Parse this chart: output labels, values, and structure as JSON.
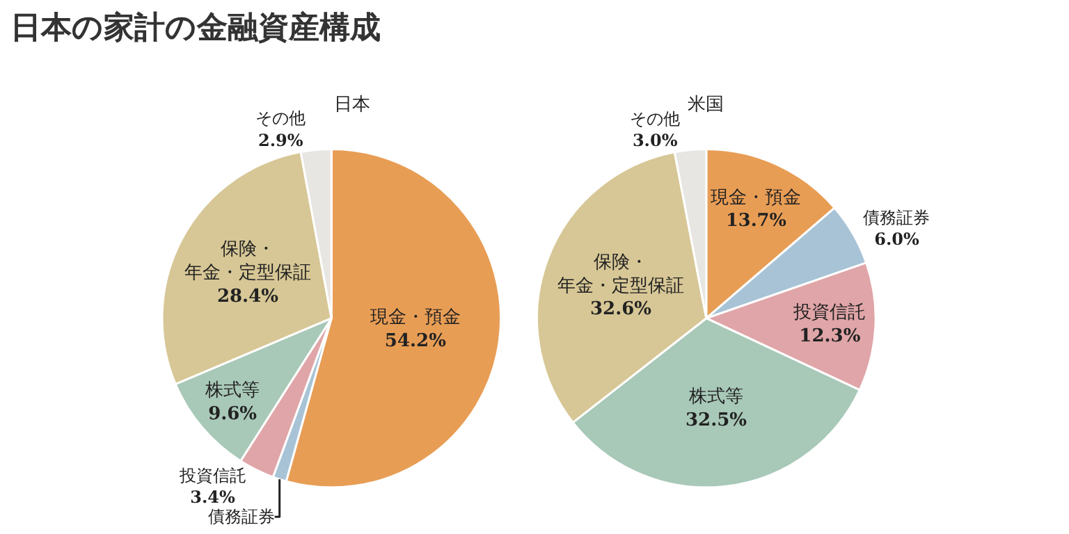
{
  "chart_data": [
    {
      "type": "pie",
      "title": "日本の家計の金融資産構成",
      "subtitle": "日本",
      "categories": [
        "現金・預金",
        "債務証券",
        "投資信託",
        "株式等",
        "保険・年金・定型保証",
        "その他"
      ],
      "values": [
        54.2,
        1.3,
        3.4,
        9.6,
        28.4,
        2.9
      ],
      "value_labels": [
        "54.2%",
        null,
        "3.4%",
        "9.6%",
        "28.4%",
        "2.9%"
      ],
      "colors": [
        "#e89d55",
        "#a8c3d6",
        "#e0a5a8",
        "#a8c8b8",
        "#d7c796",
        "#e8e6e2"
      ]
    },
    {
      "type": "pie",
      "subtitle": "米国",
      "categories": [
        "現金・預金",
        "債務証券",
        "投資信託",
        "株式等",
        "保険・年金・定型保証",
        "その他"
      ],
      "values": [
        13.7,
        6.0,
        12.3,
        32.5,
        32.6,
        3.0
      ],
      "value_labels": [
        "13.7%",
        "6.0%",
        "12.3%",
        "32.5%",
        "32.6%",
        "3.0%"
      ],
      "colors": [
        "#e89d55",
        "#a8c3d6",
        "#e0a5a8",
        "#a8c8b8",
        "#d7c796",
        "#e8e6e2"
      ]
    }
  ]
}
